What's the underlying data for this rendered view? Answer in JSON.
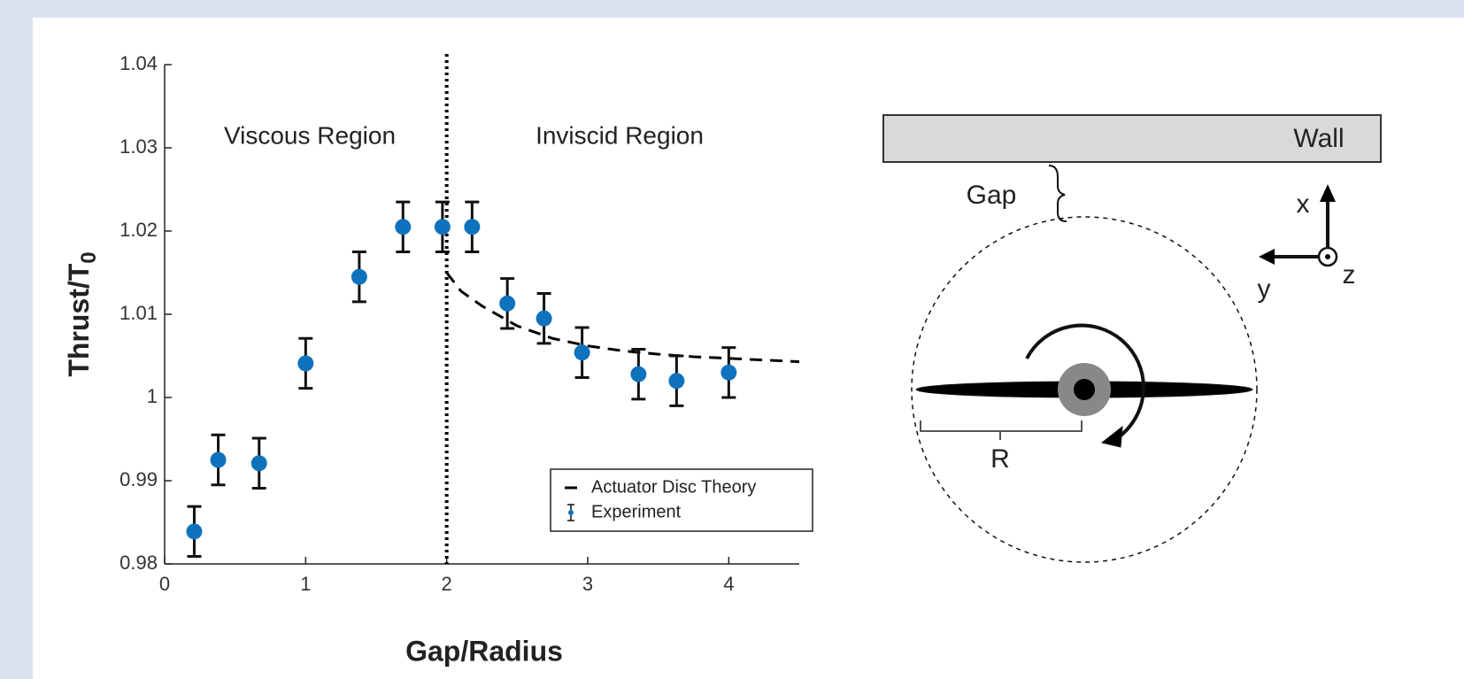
{
  "chart_data": {
    "type": "errorbar",
    "x_label": "Gap/Radius",
    "y_label": {
      "text": "Thrust/T",
      "subscript": "0"
    },
    "annotations": [
      "Viscous Region",
      "Inviscid Region"
    ],
    "reference_line": {
      "x": 2,
      "style": "dotted"
    },
    "xlim": [
      0,
      4.5
    ],
    "xticks": [
      0,
      1,
      2,
      3,
      4
    ],
    "ylim": [
      0.98,
      1.04
    ],
    "yticks": [
      0.98,
      0.99,
      1,
      1.01,
      1.02,
      1.03,
      1.04
    ],
    "legend": "lower-right",
    "series": [
      {
        "name": "Actuator Disc Theory",
        "color": "#000000",
        "style": "dashed",
        "x": [
          2,
          2.1,
          2.25,
          2.5,
          2.75,
          3,
          3.25,
          3.5,
          3.75,
          4,
          4.25,
          4.5
        ],
        "values": [
          1.015,
          1.0128,
          1.011,
          1.0086,
          1.0071,
          1.0062,
          1.0056,
          1.0052,
          1.0049,
          1.0047,
          1.0045,
          1.0043
        ]
      },
      {
        "name": "Experiment",
        "color": "#0f72bd",
        "style": "errorbar",
        "x": [
          0.21,
          0.38,
          0.67,
          1.0,
          1.38,
          1.69,
          1.97,
          2.18,
          2.43,
          2.69,
          2.96,
          3.36,
          3.63,
          4.0
        ],
        "values": [
          0.9839,
          0.9925,
          0.9921,
          1.0041,
          1.0145,
          1.0205,
          1.0205,
          1.0205,
          1.0113,
          1.0095,
          1.0054,
          1.0028,
          1.002,
          1.003
        ],
        "errors": [
          0.003,
          0.003,
          0.003,
          0.003,
          0.003,
          0.003,
          0.003,
          0.003,
          0.003,
          0.003,
          0.003,
          0.003,
          0.003,
          0.003
        ]
      }
    ]
  },
  "diagram": {
    "wall": "Wall",
    "gap": "Gap",
    "axis_x": "x",
    "axis_y": "y",
    "axis_z": "z",
    "radius": "R"
  }
}
